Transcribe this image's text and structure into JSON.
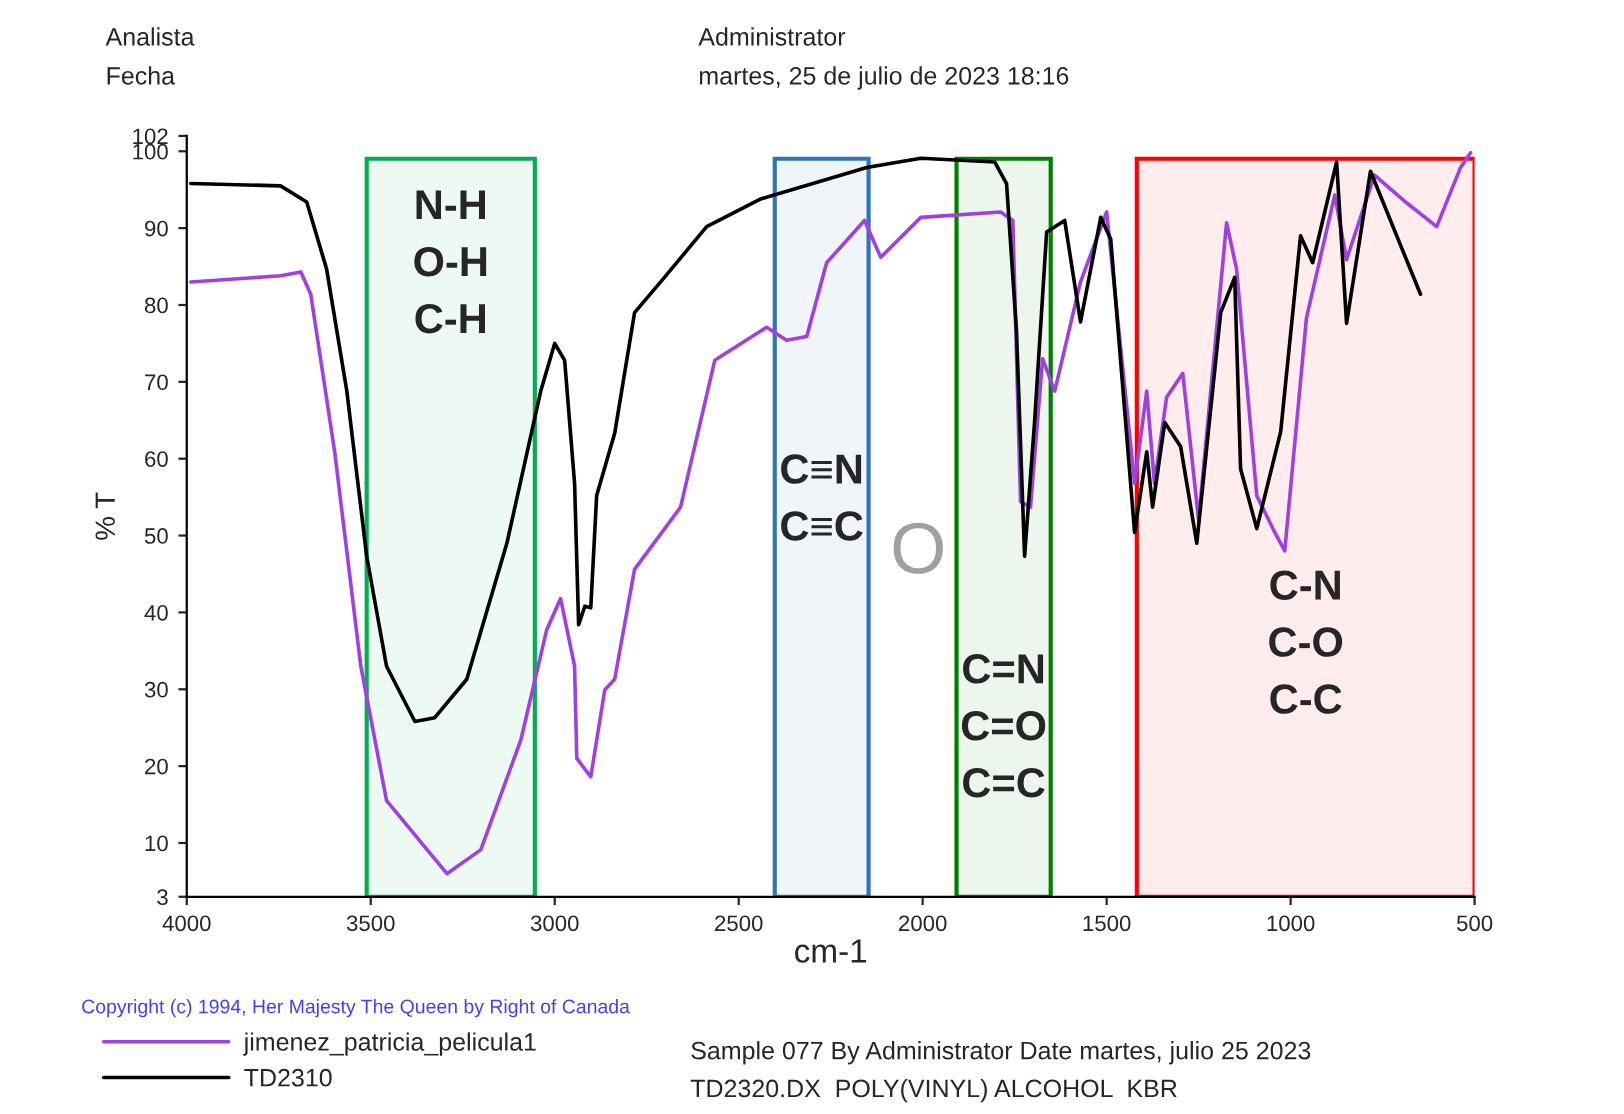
{
  "chart_data": {
    "type": "line",
    "xlabel": "cm-1",
    "ylabel": "% T",
    "xlim": [
      4000,
      500
    ],
    "xticks": [
      4000,
      3500,
      3000,
      2500,
      2000,
      1500,
      1000,
      500
    ],
    "ylim": [
      3,
      102
    ],
    "yticks": [
      3,
      10,
      20,
      30,
      40,
      50,
      60,
      70,
      80,
      90,
      100,
      102
    ],
    "grid": false,
    "legend": "bottom left",
    "marker": "none",
    "line_style": "solid",
    "series": [
      {
        "name": "jimenez_patricia_pelicula1",
        "color": "#a040e0",
        "x": [
          3989,
          3745,
          3690,
          3663,
          3598,
          3527,
          3457,
          3293,
          3201,
          3092,
          3022,
          2984,
          2946,
          2940,
          2902,
          2864,
          2837,
          2783,
          2658,
          2565,
          2424,
          2370,
          2315,
          2261,
          2158,
          2114,
          2005,
          1788,
          1755,
          1734,
          1707,
          1674,
          1641,
          1571,
          1500,
          1424,
          1391,
          1370,
          1337,
          1293,
          1250,
          1174,
          1147,
          1092,
          1043,
          1016,
          957,
          880,
          848,
          772,
          685,
          603,
          538,
          511
        ],
        "values": [
          83,
          83.8,
          84.3,
          81.4,
          60.9,
          33,
          15.5,
          6,
          9.1,
          23.4,
          37.7,
          41.8,
          33,
          21,
          18.6,
          29.9,
          31.3,
          45.6,
          53.7,
          72.8,
          77.1,
          75.4,
          75.9,
          85.5,
          91,
          86.2,
          91.4,
          92.1,
          91,
          54.4,
          53.7,
          73,
          68.8,
          83,
          92.1,
          56.8,
          68.8,
          56.8,
          68,
          71.1,
          52,
          90.7,
          84.7,
          55.2,
          50.4,
          48,
          78.3,
          94.3,
          85.9,
          96.9,
          93.3,
          90.2,
          97.9,
          99.8
        ]
      },
      {
        "name": "TD2310",
        "color": "#000000",
        "x": [
          3989,
          3745,
          3674,
          3620,
          3565,
          3511,
          3457,
          3380,
          3326,
          3239,
          3130,
          3038,
          3000,
          2973,
          2946,
          2935,
          2918,
          2902,
          2886,
          2837,
          2783,
          2712,
          2587,
          2440,
          2152,
          2005,
          1804,
          1772,
          1745,
          1723,
          1696,
          1663,
          1614,
          1571,
          1516,
          1489,
          1424,
          1391,
          1375,
          1342,
          1299,
          1255,
          1190,
          1152,
          1136,
          1092,
          1027,
          973,
          940,
          875,
          848,
          783,
          647
        ],
        "values": [
          95.8,
          95.5,
          93.4,
          84.7,
          68.8,
          47.3,
          33,
          25.8,
          26.3,
          31.3,
          49,
          68.8,
          75,
          72.8,
          56.8,
          38.4,
          40.8,
          40.6,
          55.2,
          63.3,
          79,
          83,
          90.2,
          93.8,
          97.9,
          99.1,
          98.6,
          95.8,
          76.6,
          47.3,
          64.7,
          89.5,
          91,
          77.8,
          91.4,
          88.6,
          50.4,
          60.9,
          53.7,
          64.7,
          61.6,
          49,
          79,
          83.6,
          58.7,
          50.9,
          63.5,
          89,
          85.5,
          98.6,
          77.6,
          97.4,
          81.4
        ]
      }
    ],
    "bands": [
      {
        "axis": "x",
        "from": 3511,
        "to": 3054,
        "label": "N-H\nO-H\nC-H",
        "color": "#00b050"
      },
      {
        "axis": "x",
        "from": 2402,
        "to": 2147,
        "label": "C≡N\nC≡C",
        "color": "#2e75b6"
      },
      {
        "axis": "x",
        "from": 1908,
        "to": 1652,
        "label": "C=N\nC=O\nC=C",
        "color": "#008000"
      },
      {
        "axis": "x",
        "from": 1418,
        "to": 500,
        "label": "C-N\nC-O\nC-C",
        "color": "#ff0000"
      }
    ],
    "annotations": [
      "Analista",
      "Fecha",
      "Administrator",
      "martes, 25 de julio de 2023 18:16",
      "O",
      "Copyright (c) 1994, Her Majesty The Queen by Right of Canada",
      "Sample 077 By Administrator Date martes, julio 25 2023",
      "TD2320.DX  POLY(VINYL) ALCOHOL  KBR"
    ]
  }
}
